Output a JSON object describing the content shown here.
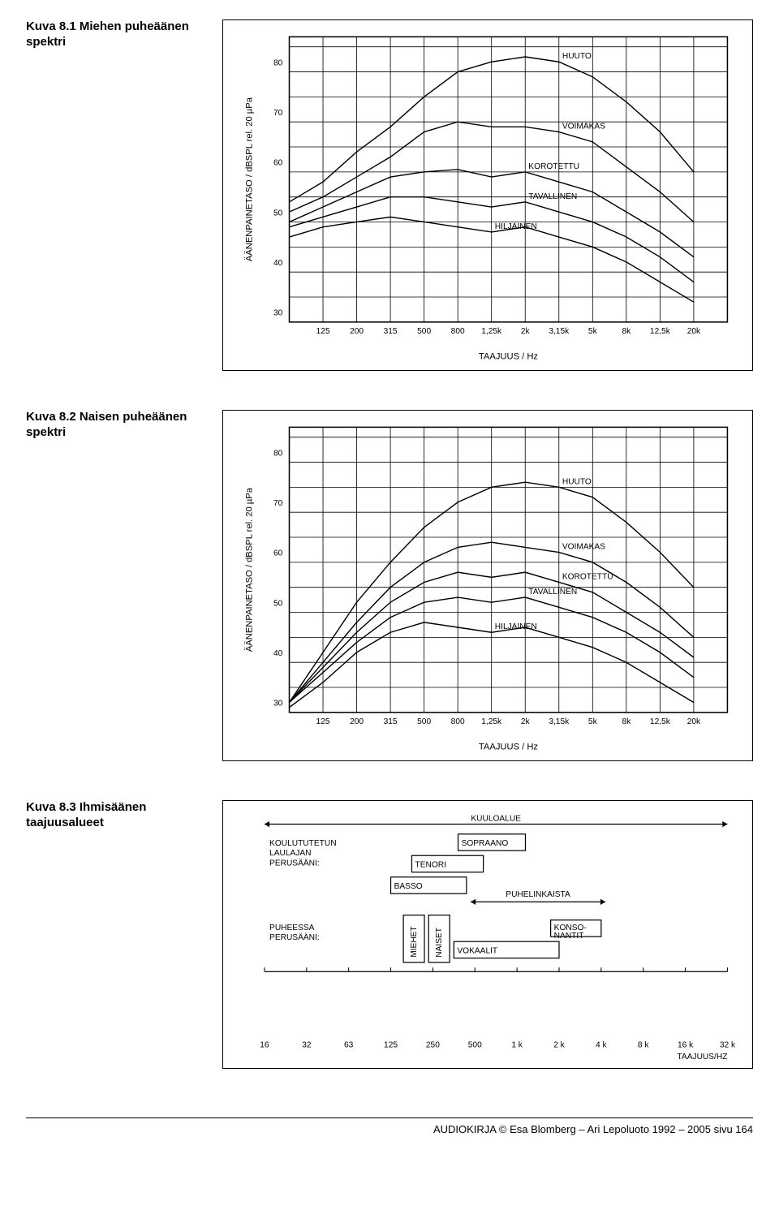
{
  "figures": [
    {
      "caption": "Kuva 8.1 Miehen puheäänen spektri",
      "chart": {
        "type": "line",
        "xlabel": "TAAJUUS / Hz",
        "ylabel": "ÄÄNENPAINETASO / dBSPL rel. 20 µPa",
        "ylim": [
          28,
          85
        ],
        "ytick_step": 10,
        "yticks": [
          30,
          40,
          50,
          60,
          70,
          80
        ],
        "xticks_labels": [
          "125",
          "200",
          "315",
          "500",
          "800",
          "1,25k",
          "2k",
          "3,15k",
          "5k",
          "8k",
          "12,5k",
          "20k"
        ],
        "frame_color": "#000000",
        "grid_color": "#000000",
        "background_color": "#ffffff",
        "line_color": "#000000",
        "line_width": 1.4,
        "label_fontsize": 11,
        "tick_fontsize": 10,
        "series": [
          {
            "label": "HUUTO",
            "label_at": 8,
            "y": [
              52,
              56,
              62,
              67,
              73,
              78,
              80,
              81,
              80,
              77,
              72,
              66,
              58
            ]
          },
          {
            "label": "VOIMAKAS",
            "label_at": 8,
            "y": [
              50,
              53,
              57,
              61,
              66,
              68,
              67,
              67,
              66,
              64,
              59,
              54,
              48
            ]
          },
          {
            "label": "KOROTETTU",
            "label_at": 7,
            "y": [
              48,
              51,
              54,
              57,
              58,
              58.5,
              57,
              58,
              56,
              54,
              50,
              46,
              41
            ]
          },
          {
            "label": "TAVALLINEN",
            "label_at": 6.5,
            "y": [
              47,
              49,
              51,
              53,
              53,
              52,
              51,
              52,
              50,
              48,
              45,
              41,
              36
            ]
          },
          {
            "label": "HILJAINEN",
            "label_at": 5.5,
            "y": [
              45,
              47,
              48,
              49,
              48,
              47,
              46,
              47,
              45,
              43,
              40,
              36,
              32
            ]
          }
        ]
      }
    },
    {
      "caption": "Kuva 8.2 Naisen puheäänen spektri",
      "chart": {
        "type": "line",
        "xlabel": "TAAJUUS / Hz",
        "ylabel": "ÄÄNENPAINETASO / dBSPL rel. 20 µPa",
        "ylim": [
          28,
          85
        ],
        "ytick_step": 10,
        "yticks": [
          30,
          40,
          50,
          60,
          70,
          80
        ],
        "xticks_labels": [
          "125",
          "200",
          "315",
          "500",
          "800",
          "1,25k",
          "2k",
          "3,15k",
          "5k",
          "8k",
          "12,5k",
          "20k"
        ],
        "frame_color": "#000000",
        "grid_color": "#000000",
        "background_color": "#ffffff",
        "line_color": "#000000",
        "line_width": 1.4,
        "label_fontsize": 11,
        "tick_fontsize": 10,
        "series": [
          {
            "label": "HUUTO",
            "label_at": 8,
            "y": [
              30,
              40,
              50,
              58,
              65,
              70,
              73,
              74,
              73,
              71,
              66,
              60,
              53
            ]
          },
          {
            "label": "VOIMAKAS",
            "label_at": 8,
            "y": [
              30,
              38,
              46,
              53,
              58,
              61,
              62,
              61,
              60,
              58,
              54,
              49,
              43
            ]
          },
          {
            "label": "KOROTETTU",
            "label_at": 7.5,
            "y": [
              30,
              37,
              44,
              50,
              54,
              56,
              55,
              56,
              54,
              52,
              48,
              44,
              39
            ]
          },
          {
            "label": "TAVALLINEN",
            "label_at": 7,
            "y": [
              30,
              36,
              42,
              47,
              50,
              51,
              50,
              51,
              49,
              47,
              44,
              40,
              35
            ]
          },
          {
            "label": "HILJAINEN",
            "label_at": 6,
            "y": [
              29,
              34,
              40,
              44,
              46,
              45,
              44,
              45,
              43,
              41,
              38,
              34,
              30
            ]
          }
        ]
      }
    },
    {
      "caption": "Kuva 8.3 Ihmisäänen taajuusalueet",
      "range_chart": {
        "xlabel": "TAAJUUS/HZ",
        "xticks": [
          16,
          32,
          63,
          125,
          250,
          500,
          "1 k",
          "2 k",
          "4 k",
          "8 k",
          "16 k",
          "32 k"
        ],
        "frame_color": "#000000",
        "background_color": "#ffffff",
        "line_color": "#000000",
        "label_fontsize": 10,
        "arrow_label": "KUULOALUE",
        "group1_label": "KOULUTUTETUN LAULAJAN PERUSÄÄNI:",
        "group1_items": [
          {
            "label": "SOPRAANO",
            "x0": 4.6,
            "x1": 6.2,
            "row": 0
          },
          {
            "label": "TENORI",
            "x0": 3.5,
            "x1": 5.2,
            "row": 1
          },
          {
            "label": "BASSO",
            "x0": 3.0,
            "x1": 4.8,
            "row": 2
          }
        ],
        "phone_arrow_label": "PUHELINKAISTA",
        "phone_arrow_x0": 4.9,
        "phone_arrow_x1": 8.1,
        "group2_label": "PUHEESSA PERUSÄÄNI:",
        "group2_items": [
          {
            "label": "MIEHET",
            "x0": 3.3,
            "x1": 3.8,
            "vertical": true
          },
          {
            "label": "NAISET",
            "x0": 3.9,
            "x1": 4.4,
            "vertical": true
          }
        ],
        "extras": [
          {
            "label": "VOKAALIT",
            "x0": 4.5,
            "x1": 7.0,
            "row": 5
          },
          {
            "label": "KONSO-\nNANTIT",
            "x0": 6.8,
            "x1": 8.0,
            "row": 4
          }
        ]
      }
    }
  ],
  "footer": "AUDIOKIRJA © Esa Blomberg – Ari Lepoluoto 1992 – 2005 sivu 164"
}
